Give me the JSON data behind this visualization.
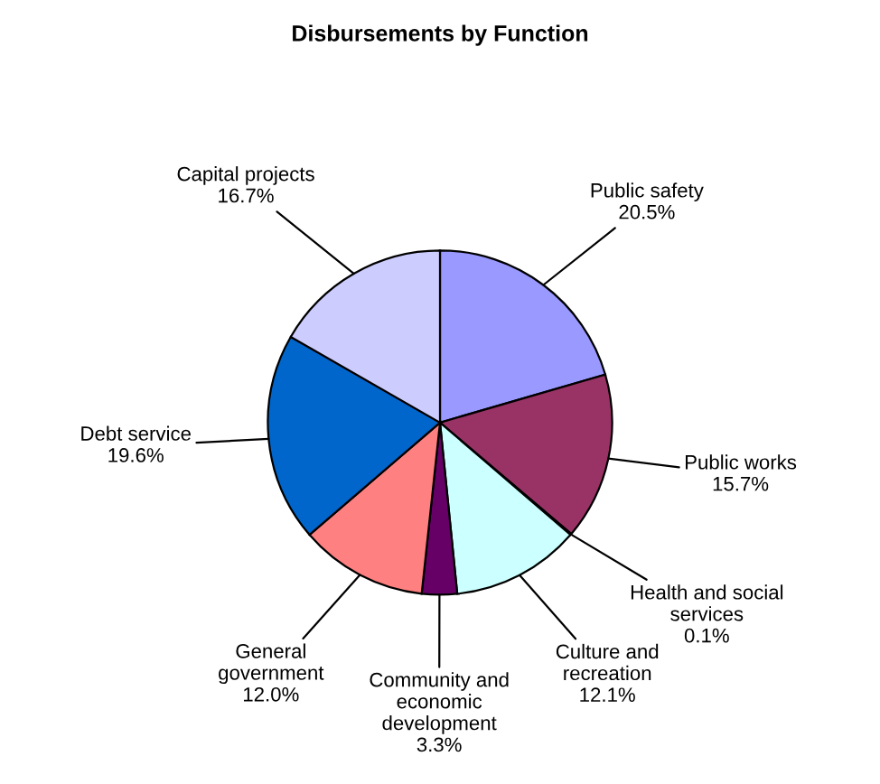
{
  "chart_data": {
    "type": "pie",
    "title": "Disbursements by Function",
    "categories": [
      "Public safety",
      "Public works",
      "Health and social\nservices",
      "Culture and\nrecreation",
      "Community and\neconomic\ndevelopment",
      "General\ngovernment",
      "Debt service",
      "Capital projects"
    ],
    "values": [
      20.5,
      15.7,
      0.1,
      12.1,
      3.3,
      12.0,
      19.6,
      16.7
    ],
    "value_labels": [
      "20.5%",
      "15.7%",
      "0.1%",
      "12.1%",
      "3.3%",
      "12.0%",
      "19.6%",
      "16.7%"
    ],
    "colors": [
      "#9999ff",
      "#993366",
      "#ffffcc",
      "#ccffff",
      "#660066",
      "#ff8080",
      "#0066cc",
      "#ccccff"
    ],
    "legend": false
  }
}
